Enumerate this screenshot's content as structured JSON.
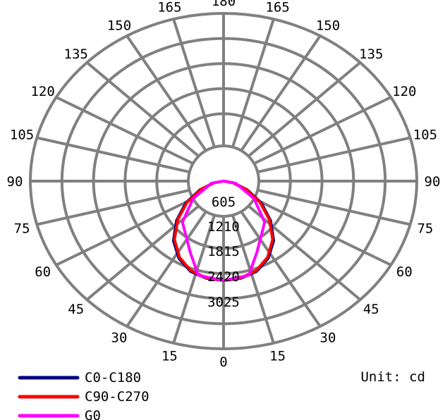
{
  "chart_data": {
    "type": "polar",
    "unit_label": "Unit: cd",
    "angle_labels": [
      {
        "angle": 0,
        "text": "0"
      },
      {
        "angle": 15,
        "text": "15"
      },
      {
        "angle": 30,
        "text": "30"
      },
      {
        "angle": 45,
        "text": "45"
      },
      {
        "angle": 60,
        "text": "60"
      },
      {
        "angle": 75,
        "text": "75"
      },
      {
        "angle": 90,
        "text": "90"
      },
      {
        "angle": 105,
        "text": "105"
      },
      {
        "angle": 120,
        "text": "120"
      },
      {
        "angle": 135,
        "text": "135"
      },
      {
        "angle": 150,
        "text": "150"
      },
      {
        "angle": 165,
        "text": "165"
      },
      {
        "angle": 180,
        "text": "180"
      }
    ],
    "radial_ticks": [
      605,
      1210,
      1815,
      2420,
      3025
    ],
    "rmax": 3025,
    "grid": true,
    "legend_position": "bottom-left",
    "series": [
      {
        "name": "C0-C180",
        "color": "#000080",
        "angles": [
          0,
          10,
          20,
          30,
          40,
          50,
          60,
          70,
          80,
          90
        ],
        "values": [
          2400,
          2380,
          2320,
          2150,
          1880,
          1480,
          1050,
          600,
          250,
          0
        ]
      },
      {
        "name": "C90-C270",
        "color": "#ff0000",
        "angles": [
          0,
          10,
          20,
          30,
          40,
          50,
          60,
          70,
          80,
          90
        ],
        "values": [
          2400,
          2370,
          2300,
          2120,
          1840,
          1440,
          1010,
          570,
          230,
          0
        ]
      },
      {
        "name": "G0",
        "color": "#ff00ff",
        "angles": [
          0,
          15,
          25,
          45,
          60,
          80,
          90
        ],
        "values": [
          2400,
          2350,
          1900,
          1400,
          850,
          300,
          0
        ]
      }
    ]
  }
}
